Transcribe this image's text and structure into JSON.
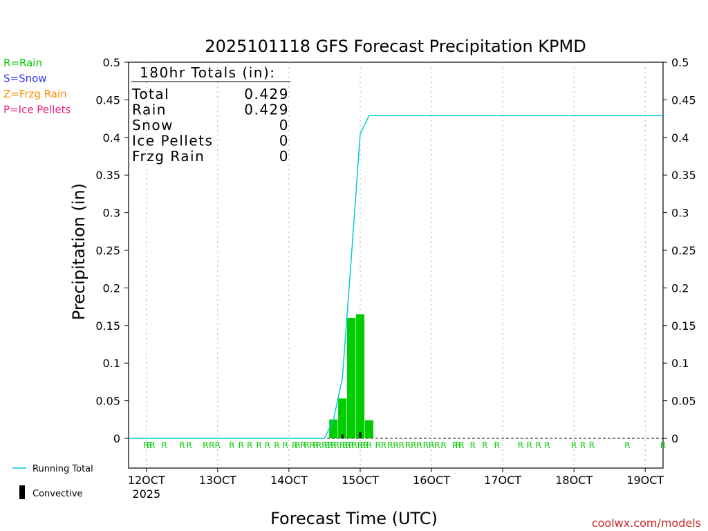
{
  "chart_data": {
    "type": "bar",
    "title": "2025101118 GFS Forecast Precipitation KPMD",
    "xlabel": "Forecast Time (UTC)",
    "ylabel": "Precipitation (in)",
    "ylim": [
      0,
      0.5
    ],
    "y_ticks": [
      "0",
      "0.05",
      "0.1",
      "0.15",
      "0.2",
      "0.25",
      "0.3",
      "0.35",
      "0.4",
      "0.45",
      "0.5"
    ],
    "xlim": [
      11.75,
      19.25
    ],
    "x_ticks": [
      {
        "day": 12,
        "label": "12OCT",
        "sub": "2025"
      },
      {
        "day": 13,
        "label": "13OCT",
        "sub": ""
      },
      {
        "day": 14,
        "label": "14OCT",
        "sub": ""
      },
      {
        "day": 15,
        "label": "15OCT",
        "sub": ""
      },
      {
        "day": 16,
        "label": "16OCT",
        "sub": ""
      },
      {
        "day": 17,
        "label": "17OCT",
        "sub": ""
      },
      {
        "day": 18,
        "label": "18OCT",
        "sub": ""
      },
      {
        "day": 19,
        "label": "19OCT",
        "sub": ""
      }
    ],
    "grid": "vertical dotted",
    "legend_placement": "left",
    "type_legend": [
      {
        "label": "R=Rain",
        "color": "#00cc00"
      },
      {
        "label": "S=Snow",
        "color": "#3333ff"
      },
      {
        "label": "Z=Frzg Rain",
        "color": "#ff8800"
      },
      {
        "label": "P=Ice Pellets",
        "color": "#ee2288"
      }
    ],
    "series_legend": [
      {
        "label": "Running Total",
        "color": "#00c8dd"
      },
      {
        "label": "Convective",
        "color": "#000000"
      }
    ],
    "totals": {
      "heading": "180hr Totals (in):",
      "rows": [
        {
          "label": "Total",
          "value": "0.429"
        },
        {
          "label": "Rain",
          "value": "0.429"
        },
        {
          "label": "Snow",
          "value": "0"
        },
        {
          "label": "Ice Pellets",
          "value": "0"
        },
        {
          "label": "Frzg Rain",
          "value": "0"
        }
      ]
    },
    "rain_bars": [
      {
        "x": 14.625,
        "y": 0.025
      },
      {
        "x": 14.75,
        "y": 0.053
      },
      {
        "x": 14.875,
        "y": 0.16
      },
      {
        "x": 15.0,
        "y": 0.165
      },
      {
        "x": 15.125,
        "y": 0.024
      }
    ],
    "convective_bars": [
      {
        "x": 14.75,
        "y": 0.005
      },
      {
        "x": 15.0,
        "y": 0.008
      }
    ],
    "running_total": [
      {
        "x": 11.75,
        "y": 0
      },
      {
        "x": 14.5,
        "y": 0
      },
      {
        "x": 14.625,
        "y": 0.025
      },
      {
        "x": 14.75,
        "y": 0.08
      },
      {
        "x": 14.875,
        "y": 0.24
      },
      {
        "x": 15.0,
        "y": 0.405
      },
      {
        "x": 15.125,
        "y": 0.429
      },
      {
        "x": 19.25,
        "y": 0.429
      }
    ],
    "precip_type_marks": {
      "label": "R",
      "days": [
        12.0,
        12.041,
        12.083,
        12.25,
        12.5,
        12.6,
        12.83,
        12.917,
        13.0,
        13.2,
        13.33,
        13.45,
        13.58,
        13.7,
        13.83,
        13.95,
        14.08,
        14.12,
        14.2,
        14.25,
        14.33,
        14.375,
        14.42,
        14.5,
        14.54,
        14.58,
        14.625,
        14.67,
        14.75,
        14.79,
        14.83,
        14.875,
        14.92,
        15.0,
        15.04,
        15.08,
        15.125,
        15.25,
        15.33,
        15.42,
        15.5,
        15.58,
        15.67,
        15.75,
        15.83,
        15.92,
        16.0,
        16.08,
        16.17,
        16.33,
        16.375,
        16.42,
        16.58,
        16.75,
        16.92,
        17.25,
        17.375,
        17.5,
        17.625,
        18.0,
        18.125,
        18.25,
        18.75,
        19.25
      ]
    },
    "credit": "coolwx.com/models"
  }
}
